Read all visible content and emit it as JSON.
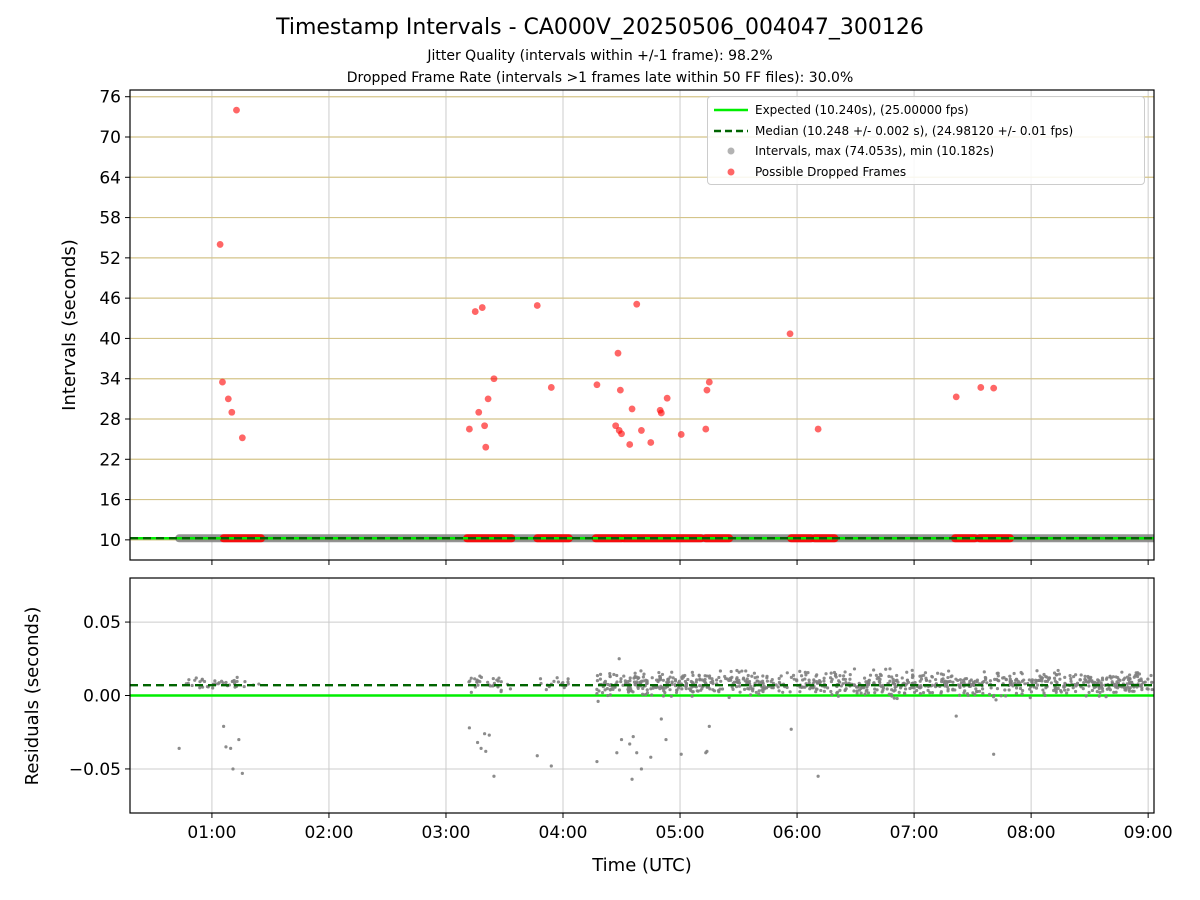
{
  "header": {
    "title": "Timestamp Intervals - CA000V_20250506_004047_300126",
    "subtitle1": "Jitter Quality (intervals within +/-1 frame): 98.2%",
    "subtitle2": "Dropped Frame Rate (intervals >1 frames late within 50 FF files): 30.0%"
  },
  "legend": {
    "expected": "Expected (10.240s), (25.00000 fps)",
    "median": "Median (10.248 +/- 0.002 s), (24.98120 +/- 0.01 fps)",
    "intervals": "Intervals, max (74.053s), min (10.182s)",
    "dropped": "Possible Dropped Frames"
  },
  "colors": {
    "expected": "#00ee00",
    "median": "#006400",
    "intervals": "#808080",
    "dropped": "#ff0000",
    "hgrid_top": "#d4c48a",
    "grid": "#cccccc"
  },
  "chart_data": [
    {
      "type": "scatter",
      "xlabel": "",
      "ylabel": "Intervals (seconds)",
      "x_unit": "hours UTC",
      "xlim": [
        0.3,
        9.05
      ],
      "ylim": [
        7,
        77
      ],
      "y_ticks": [
        10,
        16,
        22,
        28,
        34,
        40,
        46,
        52,
        58,
        64,
        70,
        76
      ],
      "y_tick_labels": [
        "10",
        "16",
        "22",
        "28",
        "34",
        "40",
        "46",
        "52",
        "58",
        "64",
        "70",
        "76"
      ],
      "expected_line": 10.24,
      "median_line": 10.248,
      "intervals_band": {
        "x_start": 0.72,
        "x_end": 9.05,
        "y_min": 10.182,
        "y_max": 10.28
      },
      "dropped_band_segments": [
        [
          1.1,
          1.42
        ],
        [
          3.18,
          3.56
        ],
        [
          3.78,
          4.05
        ],
        [
          4.28,
          4.5
        ],
        [
          4.52,
          5.18
        ],
        [
          5.22,
          5.42
        ],
        [
          5.95,
          6.12
        ],
        [
          6.15,
          6.32
        ],
        [
          7.35,
          7.52
        ],
        [
          7.56,
          7.82
        ]
      ],
      "dropped_points": [
        {
          "x": 1.07,
          "y": 54.0
        },
        {
          "x": 1.09,
          "y": 33.5
        },
        {
          "x": 1.14,
          "y": 31.0
        },
        {
          "x": 1.17,
          "y": 29.0
        },
        {
          "x": 1.21,
          "y": 74.0
        },
        {
          "x": 1.26,
          "y": 25.2
        },
        {
          "x": 3.2,
          "y": 26.5
        },
        {
          "x": 3.25,
          "y": 44.0
        },
        {
          "x": 3.28,
          "y": 29.0
        },
        {
          "x": 3.31,
          "y": 44.6
        },
        {
          "x": 3.33,
          "y": 27.0
        },
        {
          "x": 3.34,
          "y": 23.8
        },
        {
          "x": 3.36,
          "y": 31.0
        },
        {
          "x": 3.41,
          "y": 34.0
        },
        {
          "x": 3.78,
          "y": 44.9
        },
        {
          "x": 3.9,
          "y": 32.7
        },
        {
          "x": 4.29,
          "y": 33.1
        },
        {
          "x": 4.45,
          "y": 27.0
        },
        {
          "x": 4.47,
          "y": 37.8
        },
        {
          "x": 4.48,
          "y": 26.3
        },
        {
          "x": 4.49,
          "y": 32.3
        },
        {
          "x": 4.5,
          "y": 25.8
        },
        {
          "x": 4.57,
          "y": 24.2
        },
        {
          "x": 4.59,
          "y": 29.5
        },
        {
          "x": 4.63,
          "y": 45.1
        },
        {
          "x": 4.67,
          "y": 26.3
        },
        {
          "x": 4.75,
          "y": 24.5
        },
        {
          "x": 4.83,
          "y": 29.3
        },
        {
          "x": 4.84,
          "y": 28.9
        },
        {
          "x": 4.89,
          "y": 31.1
        },
        {
          "x": 5.01,
          "y": 25.7
        },
        {
          "x": 5.22,
          "y": 26.5
        },
        {
          "x": 5.23,
          "y": 32.3
        },
        {
          "x": 5.25,
          "y": 33.5
        },
        {
          "x": 5.94,
          "y": 40.7
        },
        {
          "x": 6.18,
          "y": 26.5
        },
        {
          "x": 7.36,
          "y": 31.3
        },
        {
          "x": 7.57,
          "y": 32.7
        },
        {
          "x": 7.68,
          "y": 32.6
        }
      ]
    },
    {
      "type": "scatter",
      "xlabel": "Time (UTC)",
      "ylabel": "Residuals (seconds)",
      "x_unit": "hours UTC",
      "xlim": [
        0.3,
        9.05
      ],
      "ylim": [
        -0.08,
        0.08
      ],
      "x_ticks": [
        1,
        2,
        3,
        4,
        5,
        6,
        7,
        8,
        9
      ],
      "x_tick_labels": [
        "01:00",
        "02:00",
        "03:00",
        "04:00",
        "05:00",
        "06:00",
        "07:00",
        "08:00",
        "09:00"
      ],
      "y_ticks": [
        -0.05,
        0.0,
        0.05
      ],
      "y_tick_labels": [
        "−0.05",
        "0.00",
        "0.05"
      ],
      "expected_line": 0.0,
      "median_line": 0.007,
      "cluster_segments": [
        {
          "x_start": 0.72,
          "x_end": 1.42,
          "y_center": 0.008,
          "spread": 0.003,
          "count": 40
        },
        {
          "x_start": 3.18,
          "x_end": 3.56,
          "y_center": 0.008,
          "spread": 0.004,
          "count": 30
        },
        {
          "x_start": 3.78,
          "x_end": 4.05,
          "y_center": 0.008,
          "spread": 0.003,
          "count": 18
        },
        {
          "x_start": 4.28,
          "x_end": 9.05,
          "y_center": 0.008,
          "spread": 0.006,
          "count": 900
        }
      ],
      "outlier_points": [
        {
          "x": 0.72,
          "y": -0.036
        },
        {
          "x": 1.1,
          "y": -0.021
        },
        {
          "x": 1.12,
          "y": -0.035
        },
        {
          "x": 1.16,
          "y": -0.036
        },
        {
          "x": 1.18,
          "y": -0.05
        },
        {
          "x": 1.23,
          "y": -0.03
        },
        {
          "x": 1.26,
          "y": -0.053
        },
        {
          "x": 3.2,
          "y": -0.022
        },
        {
          "x": 3.27,
          "y": -0.032
        },
        {
          "x": 3.3,
          "y": -0.036
        },
        {
          "x": 3.33,
          "y": -0.026
        },
        {
          "x": 3.34,
          "y": -0.038
        },
        {
          "x": 3.37,
          "y": -0.027
        },
        {
          "x": 3.41,
          "y": -0.055
        },
        {
          "x": 3.78,
          "y": -0.041
        },
        {
          "x": 3.9,
          "y": -0.048
        },
        {
          "x": 4.29,
          "y": -0.045
        },
        {
          "x": 4.3,
          "y": -0.004
        },
        {
          "x": 4.46,
          "y": -0.039
        },
        {
          "x": 4.48,
          "y": 0.025
        },
        {
          "x": 4.5,
          "y": -0.03
        },
        {
          "x": 4.57,
          "y": -0.033
        },
        {
          "x": 4.59,
          "y": -0.057
        },
        {
          "x": 4.6,
          "y": -0.028
        },
        {
          "x": 4.63,
          "y": -0.039
        },
        {
          "x": 4.67,
          "y": -0.05
        },
        {
          "x": 4.75,
          "y": -0.042
        },
        {
          "x": 4.84,
          "y": -0.016
        },
        {
          "x": 4.88,
          "y": -0.03
        },
        {
          "x": 5.01,
          "y": -0.04
        },
        {
          "x": 5.22,
          "y": -0.039
        },
        {
          "x": 5.23,
          "y": -0.038
        },
        {
          "x": 5.25,
          "y": -0.021
        },
        {
          "x": 5.95,
          "y": -0.023
        },
        {
          "x": 6.18,
          "y": -0.055
        },
        {
          "x": 7.36,
          "y": -0.014
        },
        {
          "x": 7.68,
          "y": -0.04
        },
        {
          "x": 7.7,
          "y": -0.003
        }
      ]
    }
  ]
}
